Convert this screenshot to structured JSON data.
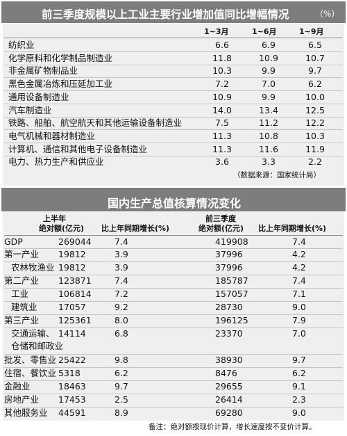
{
  "table1": {
    "title": "前三季度规模以上工业主要行业增加值同比增幅情况",
    "unit": "（%）",
    "columns": [
      "1~3月",
      "1~6月",
      "1~9月"
    ],
    "rows": [
      {
        "label": "纺织业",
        "v1": "6.6",
        "v2": "6.9",
        "v3": "6.5"
      },
      {
        "label": "化学原料和化学制品制造业",
        "v1": "11.8",
        "v2": "10.9",
        "v3": "10.7"
      },
      {
        "label": "非金属矿物制品业",
        "v1": "10.3",
        "v2": "9.9",
        "v3": "9.7"
      },
      {
        "label": "黑色金属冶炼和压延加工业",
        "v1": "7.2",
        "v2": "7.0",
        "v3": "6.2"
      },
      {
        "label": "通用设备制造业",
        "v1": "10.9",
        "v2": "9.9",
        "v3": "10.0"
      },
      {
        "label": "汽车制造业",
        "v1": "14.0",
        "v2": "13.4",
        "v3": "12.5"
      },
      {
        "label": "铁路、船舶、航空航天和其他运输设备制造业",
        "v1": "7.5",
        "v2": "11.2",
        "v3": "12.2"
      },
      {
        "label": "电气机械和器材制造业",
        "v1": "11.3",
        "v2": "10.8",
        "v3": "10.3"
      },
      {
        "label": "计算机、通信和其他电子设备制造业",
        "v1": "11.3",
        "v2": "11.6",
        "v3": "11.9"
      },
      {
        "label": "电力、热力生产和供应业",
        "v1": "3.6",
        "v2": "3.3",
        "v3": "2.2"
      }
    ],
    "source": "（数据来源：国家统计局）"
  },
  "table2": {
    "title": "国内生产总值核算情况变化",
    "h1_period": "上半年",
    "h1_amount": "绝对额(亿元)",
    "h1_growth": "比上年同期增长(%)",
    "h2_period": "前三季度",
    "h2_amount": "绝对额(亿元)",
    "h2_growth": "比上年同期增长(%)",
    "rows": [
      {
        "label": "GDP",
        "a1": "269044",
        "g1": "7.4",
        "a2": "419908",
        "g2": "7.4"
      },
      {
        "label": "第一产业",
        "a1": "19812",
        "g1": "3.9",
        "a2": "37996",
        "g2": "4.2"
      },
      {
        "label": "农林牧渔业",
        "a1": "19812",
        "g1": "3.9",
        "a2": "37996",
        "g2": "4.2"
      },
      {
        "label": "第二产业",
        "a1": "123871",
        "g1": "7.4",
        "a2": "185787",
        "g2": "7.4"
      },
      {
        "label": "工业",
        "a1": "106814",
        "g1": "7.2",
        "a2": "157057",
        "g2": "7.1"
      },
      {
        "label": "建筑业",
        "a1": "17057",
        "g1": "9.2",
        "a2": "28730",
        "g2": "9.0"
      },
      {
        "label": "第三产业",
        "a1": "125361",
        "g1": "8.0",
        "a2": "196125",
        "g2": "7.9"
      },
      {
        "label": "交通运输、",
        "label2": "仓储和邮政业",
        "a1": "14114",
        "g1": "6.8",
        "a2": "23370",
        "g2": "7.0"
      },
      {
        "label": "批发、零售业",
        "a1": "25422",
        "g1": "9.8",
        "a2": "38930",
        "g2": "9.7"
      },
      {
        "label": "住宿、餐饮业",
        "a1": "5318",
        "g1": "6.2",
        "a2": "8476",
        "g2": "6.2"
      },
      {
        "label": "金融业",
        "a1": "18463",
        "g1": "9.7",
        "a2": "29655",
        "g2": "9.1"
      },
      {
        "label": "房地产业",
        "a1": "17453",
        "g1": "2.5",
        "a2": "26414",
        "g2": "2.3"
      },
      {
        "label": "其他服务业",
        "a1": "44591",
        "g1": "8.9",
        "a2": "69280",
        "g2": "9.0"
      }
    ],
    "note": "备注：绝对额按现价计算，增长速度按不变价计算。"
  }
}
